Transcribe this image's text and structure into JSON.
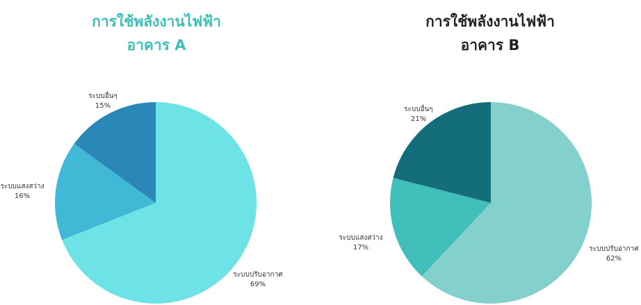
{
  "chart_data": [
    {
      "type": "pie",
      "title_line1": "การใช้พลังงานไฟฟ้า",
      "title_line2": "อาคาร A",
      "title_color": "#3dbfb8",
      "slices": [
        {
          "label": "ระบบปรับอากาศ",
          "pct_text": "69%",
          "value": 69,
          "color": "#6de3e8"
        },
        {
          "label": "ระบบแสงสว่าง",
          "pct_text": "16%",
          "value": 16,
          "color": "#40b8d6"
        },
        {
          "label": "ระบบอื่นๆ",
          "pct_text": "15%",
          "value": 15,
          "color": "#2b87b8"
        }
      ]
    },
    {
      "type": "pie",
      "title_line1": "การใช้พลังงานไฟฟ้า",
      "title_line2": "อาคาร B",
      "title_color": "#222222",
      "slices": [
        {
          "label": "ระบบปรับอากาศ",
          "pct_text": "62%",
          "value": 62,
          "color": "#83d0cc"
        },
        {
          "label": "ระบบแสงสว่าง",
          "pct_text": "17%",
          "value": 17,
          "color": "#41bfba"
        },
        {
          "label": "ระบบอื่นๆ",
          "pct_text": "21%",
          "value": 21,
          "color": "#136d7a"
        }
      ]
    }
  ]
}
